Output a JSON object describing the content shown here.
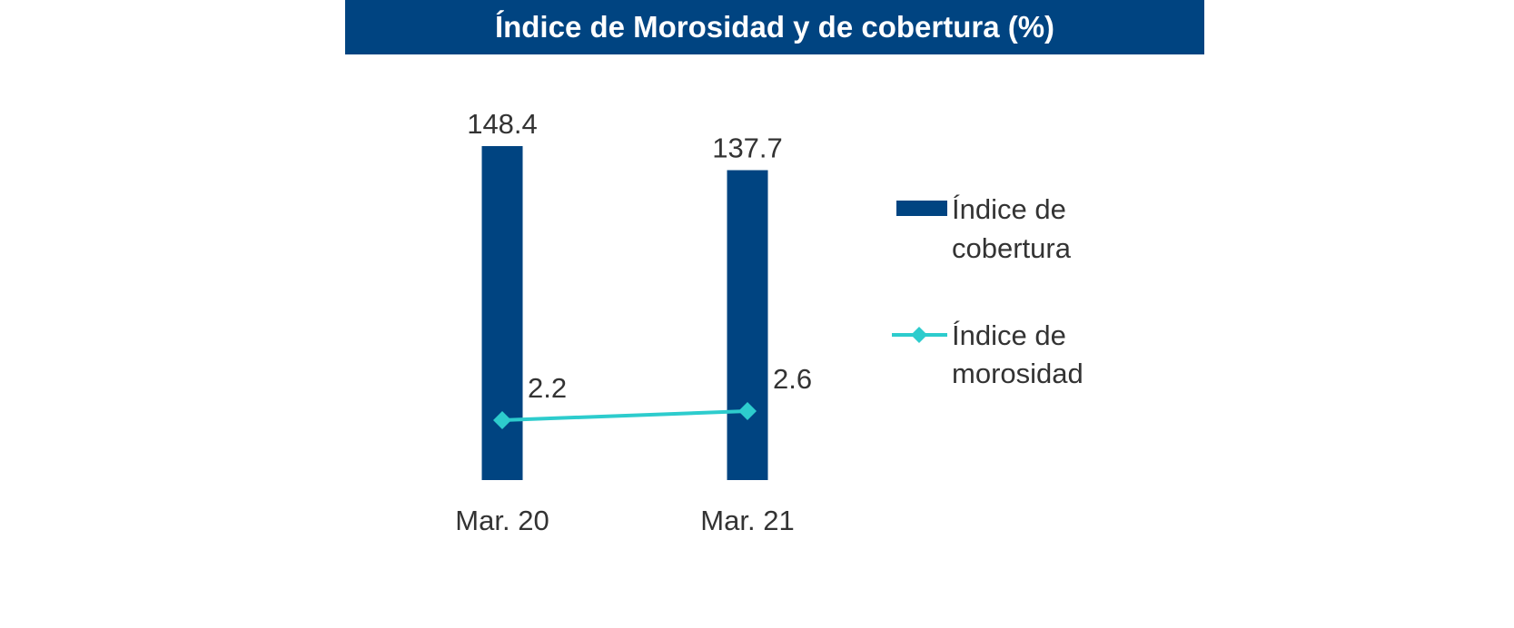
{
  "chart_data": {
    "type": "bar",
    "title": "Índice de Morosidad y de cobertura (%)",
    "categories": [
      "Mar. 20",
      "Mar. 21"
    ],
    "series": [
      {
        "name": "Índice de cobertura",
        "type": "bar",
        "values": [
          148.4,
          137.7
        ],
        "color": "#004481"
      },
      {
        "name": "Índice de morosidad",
        "type": "line",
        "marker": "diamond",
        "values": [
          2.2,
          2.6
        ],
        "color": "#2dcccd"
      }
    ],
    "value_labels": {
      "bars": [
        "148.4",
        "137.7"
      ],
      "line": [
        "2.2",
        "2.6"
      ]
    },
    "legend": {
      "position": "right",
      "entries": [
        {
          "line1": "Índice de",
          "line2": "cobertura"
        },
        {
          "line1": "Índice de",
          "line2": "morosidad"
        }
      ]
    },
    "grid": false,
    "axes_visible": false
  }
}
